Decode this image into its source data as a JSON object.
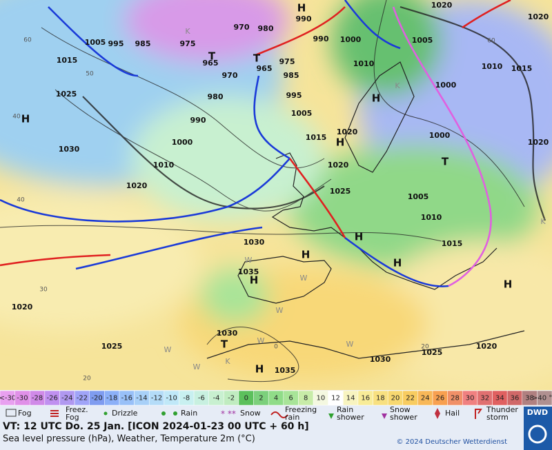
{
  "map": {
    "isobar_labels": [
      "1005",
      "995",
      "985",
      "975",
      "970",
      "980",
      "990",
      "990",
      "1000",
      "965",
      "1015",
      "965",
      "970",
      "975",
      "985",
      "980",
      "995",
      "990",
      "1005",
      "1000",
      "1015",
      "1025",
      "1030",
      "1010",
      "1020",
      "1020",
      "1025",
      "1020",
      "1010",
      "1020",
      "1005",
      "1010",
      "1015",
      "1000",
      "1000",
      "1005",
      "1010",
      "1015",
      "1020",
      "1020",
      "1030",
      "1035",
      "1020",
      "1025",
      "1030",
      "1035",
      "1030",
      "1025",
      "1020"
    ],
    "pressure_centers": [
      "H",
      "H",
      "H",
      "H",
      "H",
      "H",
      "H",
      "H",
      "H",
      "H",
      "T",
      "T",
      "T",
      "T"
    ],
    "isotherm_labels": [
      "60",
      "50",
      "40",
      "40",
      "60",
      "30",
      "20",
      "20",
      "0"
    ],
    "region_marks": [
      "K",
      "K",
      "K",
      "K",
      "W",
      "W",
      "W",
      "W",
      "W",
      "W",
      "W"
    ]
  },
  "scale": {
    "low_label": "<-30",
    "high_label": ">40 °C",
    "ticks": [
      -30,
      -28,
      -26,
      -24,
      -22,
      -20,
      -18,
      -16,
      -14,
      -12,
      -10,
      -8,
      -6,
      -4,
      -2,
      0,
      2,
      4,
      6,
      8,
      10,
      12,
      14,
      16,
      18,
      20,
      22,
      24,
      26,
      28,
      30,
      32,
      34,
      36,
      38
    ],
    "low_color": "#e8a0f0",
    "high_color": "#b09090",
    "colors": [
      "#e090e8",
      "#d08ae8",
      "#c090f0",
      "#b098f0",
      "#a0a4f8",
      "#7f9cf0",
      "#8cb0f8",
      "#98c0f8",
      "#a8d0f8",
      "#b4dcf8",
      "#c0e8f8",
      "#c8f0f0",
      "#c8f0e0",
      "#c8f0d0",
      "#c0ecc0",
      "#5cc05c",
      "#7cd07c",
      "#90dc88",
      "#a8e498",
      "#c8eca8",
      "#f4f8e0",
      "#ffffff",
      "#f8f4c0",
      "#f8ec98",
      "#f8e080",
      "#f8d870",
      "#f8cc60",
      "#f8b858",
      "#f8a050",
      "#f09068",
      "#f08080",
      "#e07070",
      "#e06060",
      "#d06868",
      "#b08080"
    ]
  },
  "legend": [
    {
      "lines": [
        "Fog"
      ]
    },
    {
      "lines": [
        "Freez.",
        "Fog"
      ]
    },
    {
      "lines": [
        "Drizzle"
      ]
    },
    {
      "lines": [
        "Rain"
      ]
    },
    {
      "lines": [
        "Snow"
      ]
    },
    {
      "lines": [
        "Freezing",
        "rain"
      ]
    },
    {
      "lines": [
        "Rain",
        "shower"
      ]
    },
    {
      "lines": [
        "Snow",
        "shower"
      ]
    },
    {
      "lines": [
        "Hail"
      ]
    },
    {
      "lines": [
        "Thunder",
        "storm"
      ]
    }
  ],
  "footer": {
    "valid_time": "VT: 12 UTC Do.  25 Jan. [ICON 2024-01-23  00 UTC + 60 h]",
    "description": "Sea level pressure (hPa), Weather, Temperature 2m (°C)",
    "copyright": "© 2024 Deutscher Wetterdienst",
    "logo": "DWD"
  }
}
